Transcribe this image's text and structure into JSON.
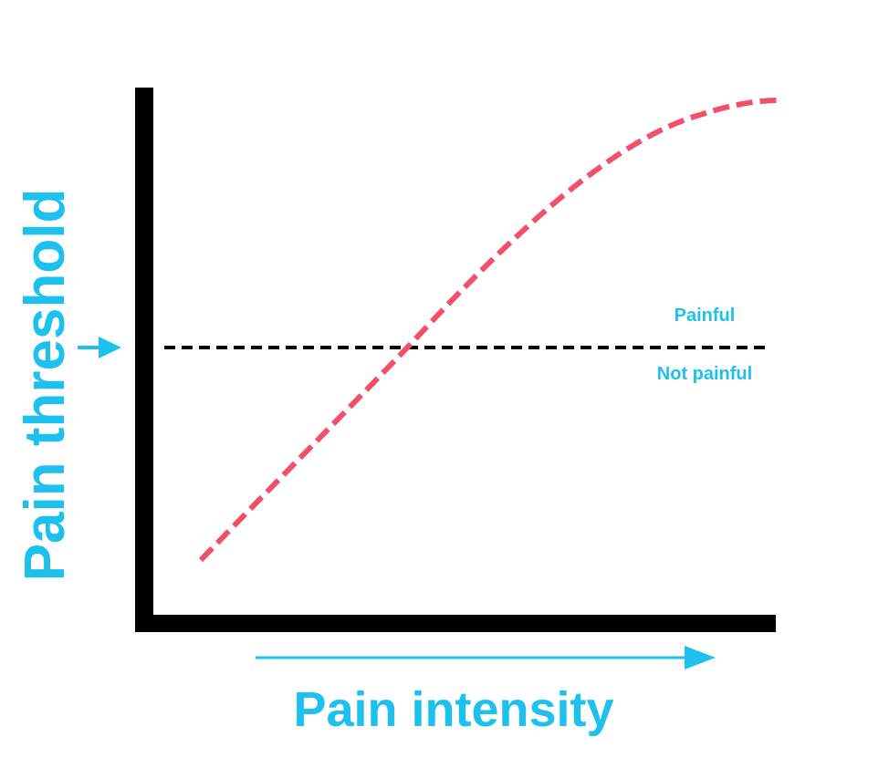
{
  "y_axis_label": "Pain threshold",
  "x_axis_label": "Pain intensity",
  "above_label": "Painful",
  "below_label": "Not painful"
}
